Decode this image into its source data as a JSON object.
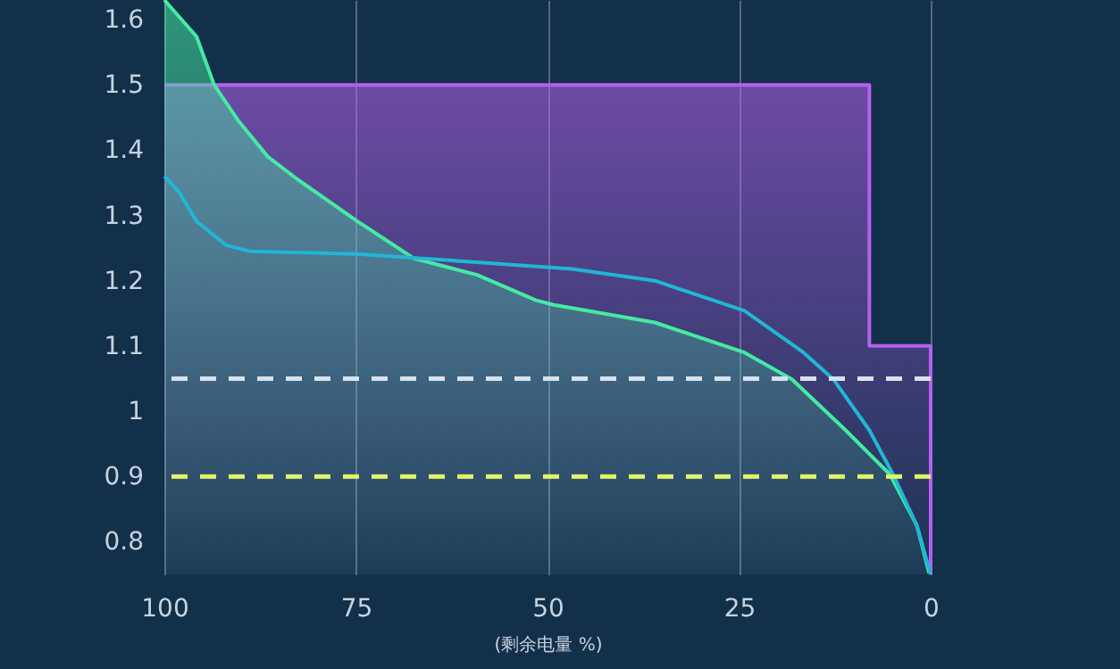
{
  "chart_data": {
    "type": "line",
    "xlabel": "(剩余电量 %)",
    "xlim": [
      100,
      0
    ],
    "xticks": [
      100,
      75,
      50,
      25,
      0
    ],
    "ylim": [
      0.75,
      1.63
    ],
    "yticks": [
      0.8,
      0.9,
      1,
      1.1,
      1.2,
      1.3,
      1.4,
      1.5,
      1.6
    ],
    "grid": "x",
    "series": [
      {
        "type": "area",
        "color": "#b660f0",
        "x": [
          100,
          8,
          8,
          0,
          0
        ],
        "values": [
          1.5,
          1.5,
          1.1,
          1.1,
          0.75
        ]
      },
      {
        "type": "area",
        "color": "#45eaa2",
        "x": [
          100,
          95.8,
          93.5,
          90.4,
          86.5,
          82.6,
          74.8,
          67.4,
          59.2,
          51.5,
          49.2,
          36,
          24.3,
          18.1,
          11.1,
          5.3,
          1.8,
          0.2
        ],
        "values": [
          1.63,
          1.574,
          1.5,
          1.446,
          1.39,
          1.355,
          1.291,
          1.234,
          1.209,
          1.17,
          1.163,
          1.136,
          1.09,
          1.049,
          0.971,
          0.903,
          0.825,
          0.752
        ]
      },
      {
        "color": "#22b6d6",
        "x": [
          100,
          98.1,
          95.8,
          91.9,
          88.8,
          74.8,
          46.8,
          36,
          24.3,
          16.6,
          12.7,
          8,
          4.9,
          1.8,
          0
        ],
        "values": [
          1.36,
          1.336,
          1.291,
          1.254,
          1.245,
          1.241,
          1.218,
          1.2,
          1.154,
          1.09,
          1.049,
          0.971,
          0.903,
          0.825,
          0.75
        ]
      }
    ],
    "ref_lines": [
      {
        "axis": "y",
        "value": 1.05,
        "color": "#d6e2ee",
        "line_style": "dashed"
      },
      {
        "axis": "y",
        "value": 0.9,
        "color": "#e4f46a",
        "line_style": "dashed"
      }
    ]
  }
}
